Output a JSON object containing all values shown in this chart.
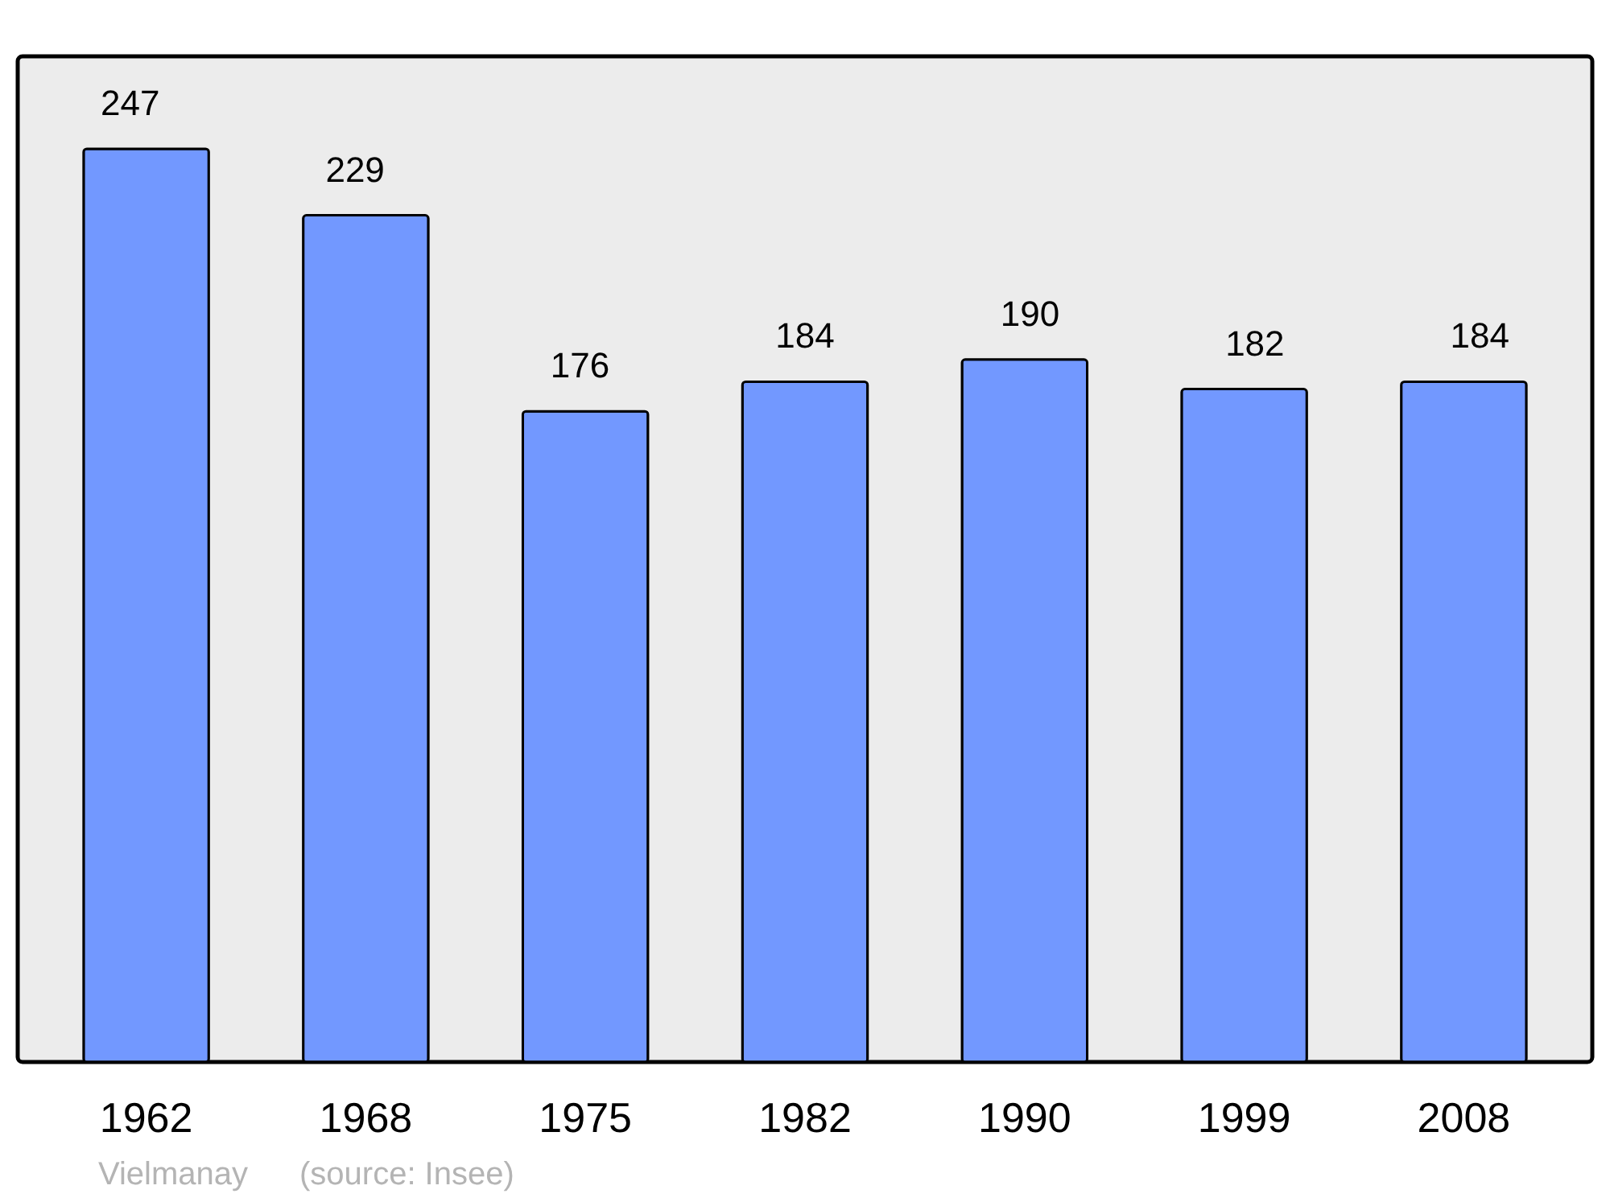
{
  "chart_data": {
    "type": "bar",
    "categories": [
      "1962",
      "1968",
      "1975",
      "1982",
      "1990",
      "1999",
      "2008"
    ],
    "values": [
      247,
      229,
      176,
      184,
      190,
      182,
      184
    ],
    "color": "#7298ff",
    "ylim": [
      0,
      272
    ],
    "data_labels": true,
    "annotations": [
      "Vielmanay",
      "(source: Insee)"
    ]
  }
}
